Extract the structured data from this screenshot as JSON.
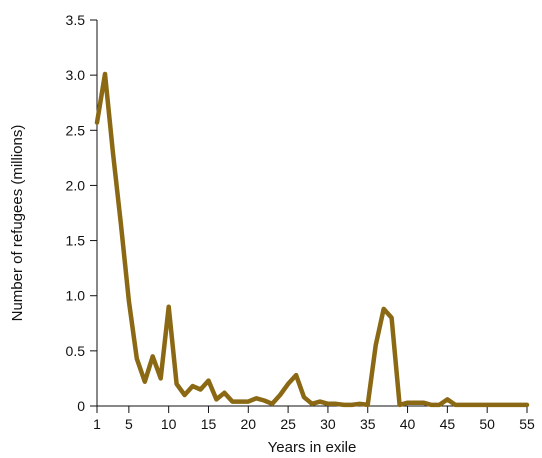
{
  "chart_data": {
    "type": "line",
    "title": "",
    "xlabel": "Years in exile",
    "ylabel": "Number of refugees (millions)",
    "xlim": [
      1,
      55
    ],
    "ylim": [
      0,
      3.5
    ],
    "x_ticks": [
      1,
      5,
      10,
      15,
      20,
      25,
      30,
      35,
      40,
      45,
      50,
      55
    ],
    "y_ticks": [
      0,
      0.5,
      1.0,
      1.5,
      2.0,
      2.5,
      3.0,
      3.5
    ],
    "y_tick_labels": [
      "0",
      "0.5",
      "1.0",
      "1.5",
      "2.0",
      "2.5",
      "3.0",
      "3.5"
    ],
    "grid": false,
    "legend": "none",
    "series_color": "#8B6914",
    "series": [
      {
        "x": [
          1,
          2,
          3,
          4,
          5,
          6,
          7,
          8,
          9,
          10,
          11,
          12,
          13,
          14,
          15,
          16,
          17,
          18,
          19,
          20,
          21,
          22,
          23,
          24,
          25,
          26,
          27,
          28,
          29,
          30,
          31,
          32,
          33,
          34,
          35,
          36,
          37,
          38,
          39,
          40,
          41,
          42,
          43,
          44,
          45,
          46,
          47,
          48,
          49,
          50,
          51,
          52,
          53,
          54,
          55
        ],
        "values": [
          2.57,
          3.01,
          2.3,
          1.65,
          0.95,
          0.43,
          0.22,
          0.45,
          0.25,
          0.9,
          0.2,
          0.1,
          0.18,
          0.15,
          0.23,
          0.06,
          0.12,
          0.04,
          0.04,
          0.04,
          0.07,
          0.05,
          0.02,
          0.1,
          0.2,
          0.28,
          0.08,
          0.02,
          0.04,
          0.02,
          0.02,
          0.01,
          0.01,
          0.02,
          0.01,
          0.55,
          0.88,
          0.8,
          0.01,
          0.03,
          0.03,
          0.03,
          0.01,
          0.01,
          0.06,
          0.01,
          0.01,
          0.01,
          0.01,
          0.01,
          0.01,
          0.01,
          0.01,
          0.01,
          0.01
        ]
      }
    ]
  }
}
